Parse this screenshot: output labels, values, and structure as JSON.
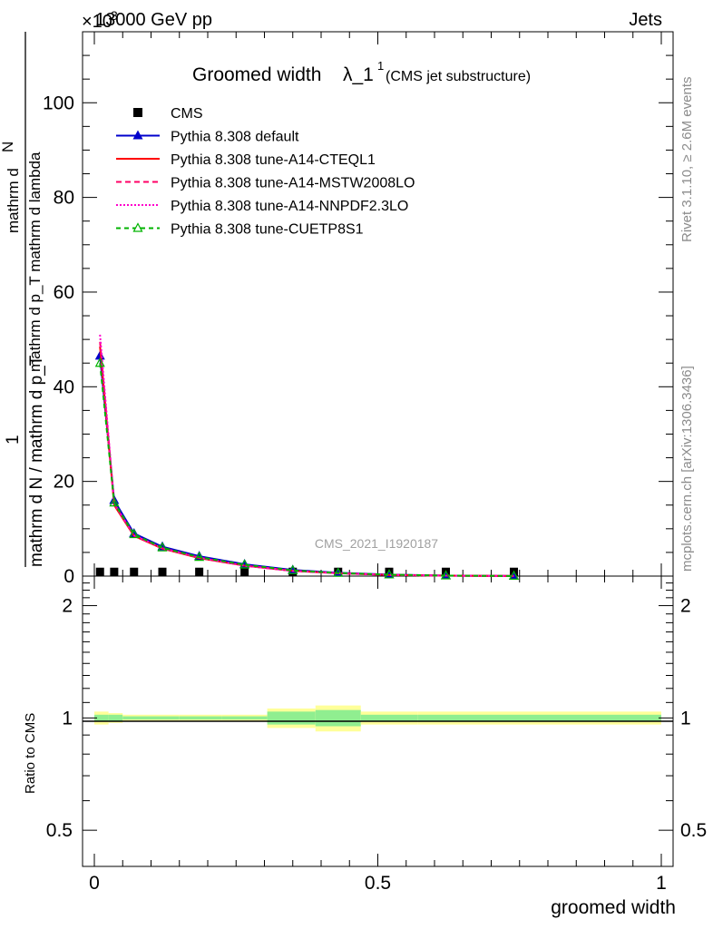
{
  "header": {
    "left": "13000 GeV pp",
    "right": "Jets",
    "exponent": "×10",
    "exponent_power": "3"
  },
  "plot_title": {
    "main": "Groomed width",
    "symbol": "λ_1",
    "superscript": "1",
    "paren": "(CMS jet substructure)"
  },
  "side_labels": {
    "rivet": "Rivet 3.1.10, ≥ 2.6M events",
    "mcplots": "mcplots.cern.ch [arXiv:1306.3436]"
  },
  "watermark": "CMS_2021_I1920187",
  "ylabel_main": {
    "numerator_top": "1",
    "numerator_frac_num": "mathrm d",
    "numerator_frac_N": "N",
    "numerator_frac_den": "mathrm d p_T mathrm d lambda",
    "denominator": "mathrm d N / mathrm d p_T"
  },
  "ylabel_ratio": "Ratio to CMS",
  "xlabel": "groomed width",
  "colors": {
    "cms": "#000000",
    "default": "#0000cc",
    "cteql1": "#ff0000",
    "mstw": "#ff0066",
    "nnpdf": "#ff00cc",
    "cuetp8s1": "#00b300",
    "band_inner": "#90ee90",
    "band_outer": "#ffff99"
  },
  "chart_data": {
    "type": "line",
    "xlim": [
      0,
      1
    ],
    "ylim": [
      0,
      115
    ],
    "y_multiplier": "×10^3",
    "x_ticks": [
      "0",
      "0.5",
      "1"
    ],
    "y_ticks": [
      "0",
      "20",
      "40",
      "60",
      "80",
      "100"
    ],
    "ratio_ylim": [
      0.4,
      2.4
    ],
    "ratio_ticks": [
      "0.5",
      "1",
      "2"
    ],
    "legend_position": "top-left",
    "x": [
      0.01,
      0.035,
      0.07,
      0.12,
      0.185,
      0.265,
      0.35,
      0.43,
      0.52,
      0.62,
      0.74
    ],
    "series": [
      {
        "name": "CMS",
        "style": "marker-square",
        "color": "#000000",
        "values": [
          0.05,
          0.05,
          0.05,
          0.05,
          0.05,
          0.05,
          0.05,
          0.05,
          0.05,
          0.05,
          0.05
        ]
      },
      {
        "name": "Pythia 8.308 default",
        "style": "line-triangle",
        "color": "#0000cc",
        "values": [
          46.5,
          16.0,
          9.0,
          6.2,
          4.2,
          2.5,
          1.3,
          0.7,
          0.3,
          0.1,
          0.02
        ]
      },
      {
        "name": "Pythia 8.308 tune-A14-CTEQL1",
        "style": "solid",
        "color": "#ff0000",
        "values": [
          48.5,
          15.0,
          8.5,
          5.8,
          3.8,
          2.2,
          1.1,
          0.6,
          0.25,
          0.1,
          0.02
        ]
      },
      {
        "name": "Pythia 8.308 tune-A14-MSTW2008LO",
        "style": "dashed",
        "color": "#ff0066",
        "values": [
          49.5,
          15.2,
          8.6,
          5.9,
          3.9,
          2.2,
          1.1,
          0.6,
          0.25,
          0.1,
          0.02
        ]
      },
      {
        "name": "Pythia 8.308 tune-A14-NNPDF2.3LO",
        "style": "dotted",
        "color": "#ff00cc",
        "values": [
          51.0,
          15.3,
          8.6,
          5.9,
          3.9,
          2.2,
          1.1,
          0.6,
          0.25,
          0.1,
          0.02
        ]
      },
      {
        "name": "Pythia 8.308 tune-CUETP8S1",
        "style": "dashed-open-triangle",
        "color": "#00b300",
        "values": [
          45.0,
          15.5,
          8.8,
          6.0,
          4.0,
          2.4,
          1.2,
          0.65,
          0.3,
          0.1,
          0.02
        ]
      }
    ],
    "ratio_bands": {
      "edges": [
        0.0,
        0.025,
        0.05,
        0.1,
        0.15,
        0.225,
        0.305,
        0.39,
        0.47,
        0.57,
        0.68,
        1.0
      ],
      "inner": [
        0.02,
        0.02,
        0.01,
        0.01,
        0.01,
        0.01,
        0.04,
        0.05,
        0.02,
        0.02,
        0.02
      ],
      "outer": [
        0.04,
        0.03,
        0.02,
        0.02,
        0.02,
        0.02,
        0.06,
        0.08,
        0.04,
        0.04,
        0.04
      ]
    }
  }
}
